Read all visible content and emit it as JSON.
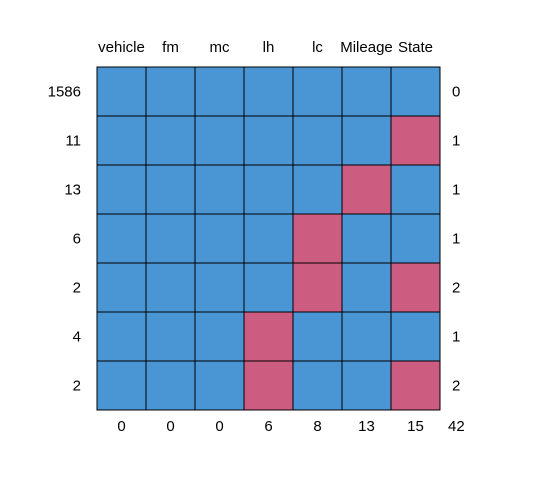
{
  "chart_data": {
    "type": "heatmap",
    "variables": [
      "vehicle",
      "fm",
      "mc",
      "lh",
      "lc",
      "Mileage",
      "State"
    ],
    "row_counts": [
      1586,
      11,
      13,
      6,
      2,
      4,
      2
    ],
    "row_missing_counts": [
      0,
      1,
      1,
      1,
      2,
      1,
      2
    ],
    "column_missing_counts": [
      0,
      0,
      0,
      6,
      8,
      13,
      15
    ],
    "total_missing": 42,
    "matrix": [
      [
        1,
        1,
        1,
        1,
        1,
        1,
        1
      ],
      [
        1,
        1,
        1,
        1,
        1,
        1,
        0
      ],
      [
        1,
        1,
        1,
        1,
        1,
        0,
        1
      ],
      [
        1,
        1,
        1,
        1,
        0,
        1,
        1
      ],
      [
        1,
        1,
        1,
        1,
        0,
        1,
        0
      ],
      [
        1,
        1,
        1,
        0,
        1,
        1,
        1
      ],
      [
        1,
        1,
        1,
        0,
        1,
        1,
        0
      ]
    ],
    "colors": {
      "observed": "#4A95D3",
      "missing": "#CC5C80",
      "border": "#000000"
    }
  }
}
